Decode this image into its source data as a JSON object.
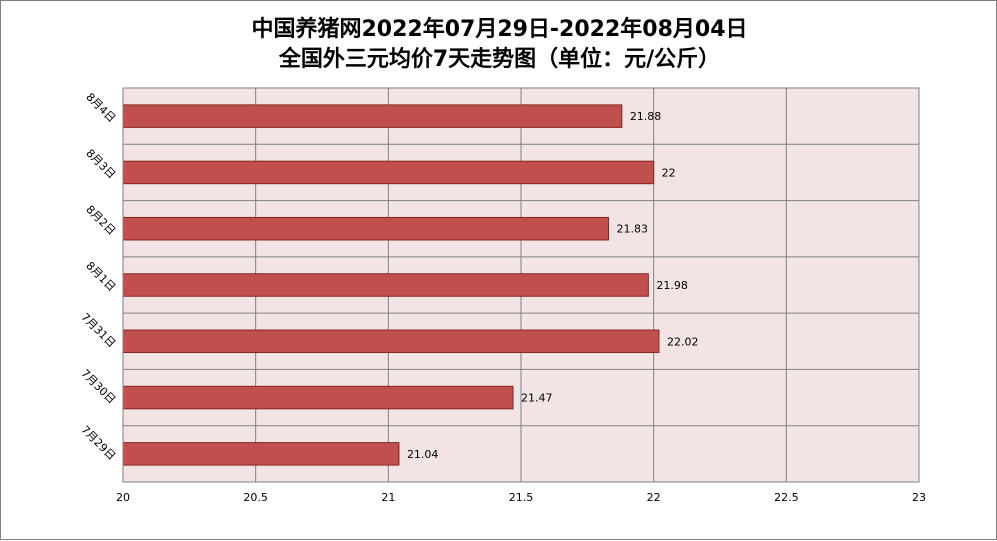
{
  "chart_data": {
    "type": "bar",
    "orientation": "horizontal",
    "title_line_1": "中国养猪网2022年07月29日-2022年08月04日",
    "title_line_2": "全国外三元均价7天走势图（单位：元/公斤）",
    "categories": [
      "7月29日",
      "7月30日",
      "7月31日",
      "8月1日",
      "8月2日",
      "8月3日",
      "8月4日"
    ],
    "values": [
      21.04,
      21.47,
      22.02,
      21.98,
      21.83,
      22,
      21.88
    ],
    "value_labels": [
      "21.04",
      "21.47",
      "22.02",
      "21.98",
      "21.83",
      "22",
      "21.88"
    ],
    "x_ticks": [
      "20",
      "20.5",
      "21",
      "21.5",
      "22",
      "22.5",
      "23"
    ],
    "xlim": [
      20,
      23
    ],
    "xlabel": "",
    "ylabel": "",
    "grid": true,
    "legend": "none",
    "colors": {
      "bar_fill": "#c0504d",
      "bar_stroke": "#8b2323",
      "plot_bg": "#f2e4e4",
      "grid": "#808080"
    }
  }
}
